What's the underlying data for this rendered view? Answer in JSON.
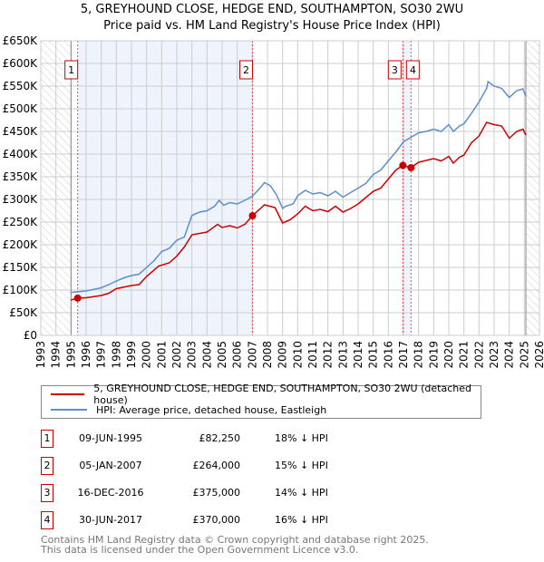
{
  "chart_data": {
    "type": "line",
    "title": "5, GREYHOUND CLOSE, HEDGE END, SOUTHAMPTON, SO30 2WU",
    "subtitle": "Price paid vs. HM Land Registry's House Price Index (HPI)",
    "xlim": [
      1993,
      2026
    ],
    "ylim": [
      0,
      650000
    ],
    "x_ticks": [
      "1993",
      "1994",
      "1995",
      "1996",
      "1997",
      "1998",
      "1999",
      "2000",
      "2001",
      "2002",
      "2003",
      "2004",
      "2005",
      "2006",
      "2007",
      "2008",
      "2009",
      "2010",
      "2011",
      "2012",
      "2013",
      "2014",
      "2015",
      "2016",
      "2017",
      "2018",
      "2019",
      "2020",
      "2021",
      "2022",
      "2023",
      "2024",
      "2025",
      "2026"
    ],
    "y_ticks": [
      {
        "v": 0,
        "l": "£0"
      },
      {
        "v": 50000,
        "l": "£50K"
      },
      {
        "v": 100000,
        "l": "£100K"
      },
      {
        "v": 150000,
        "l": "£150K"
      },
      {
        "v": 200000,
        "l": "£200K"
      },
      {
        "v": 250000,
        "l": "£250K"
      },
      {
        "v": 300000,
        "l": "£300K"
      },
      {
        "v": 350000,
        "l": "£350K"
      },
      {
        "v": 400000,
        "l": "£400K"
      },
      {
        "v": 450000,
        "l": "£450K"
      },
      {
        "v": 500000,
        "l": "£500K"
      },
      {
        "v": 550000,
        "l": "£550K"
      },
      {
        "v": 600000,
        "l": "£600K"
      },
      {
        "v": 650000,
        "l": "£650K"
      }
    ],
    "grid": true,
    "data_range": [
      1995.0,
      2025.1
    ],
    "series": [
      {
        "name": "5, GREYHOUND CLOSE, HEDGE END, SOUTHAMPTON, SO30 2WU (detached house)",
        "color": "#cc0000",
        "x": [
          1995,
          1995.44,
          1996,
          1997,
          1997.5,
          1998,
          1999,
          1999.5,
          2000,
          2000.8,
          2001.5,
          2002,
          2002.5,
          2003,
          2004,
          2004.7,
          2005,
          2005.5,
          2006,
          2006.5,
          2007.01,
          2007.8,
          2008.5,
          2009,
          2009.5,
          2010,
          2010.5,
          2011,
          2011.5,
          2012,
          2012.5,
          2013,
          2013.5,
          2014,
          2015,
          2015.5,
          2016,
          2016.5,
          2016.96,
          2017.5,
          2018,
          2019,
          2019.5,
          2020,
          2020.3,
          2020.7,
          2021,
          2021.5,
          2022,
          2022.5,
          2023,
          2023.5,
          2024,
          2024.5,
          2024.9,
          2025.1
        ],
        "y": [
          78000,
          82250,
          83000,
          88000,
          93000,
          103000,
          110000,
          112000,
          130000,
          153000,
          160000,
          175000,
          195000,
          222000,
          228000,
          245000,
          238000,
          242000,
          237000,
          245000,
          264000,
          288000,
          282000,
          248000,
          255000,
          268000,
          285000,
          275000,
          278000,
          273000,
          285000,
          272000,
          280000,
          290000,
          318000,
          325000,
          345000,
          365000,
          375000,
          370000,
          382000,
          390000,
          385000,
          395000,
          380000,
          393000,
          398000,
          425000,
          440000,
          470000,
          465000,
          462000,
          435000,
          450000,
          455000,
          442000
        ]
      },
      {
        "name": "HPI: Average price, detached house, Eastleigh",
        "color": "#5b8fd0",
        "x": [
          1995,
          1996,
          1997,
          1997.5,
          1998,
          1998.5,
          1999,
          1999.5,
          2000,
          2000.5,
          2001,
          2001.5,
          2002,
          2002.5,
          2003,
          2003.5,
          2004,
          2004.5,
          2004.8,
          2005.1,
          2005.5,
          2006,
          2006.5,
          2007,
          2007.5,
          2007.8,
          2008.2,
          2008.6,
          2009,
          2009.2,
          2009.7,
          2010,
          2010.5,
          2011,
          2011.5,
          2012,
          2012.5,
          2013,
          2013.5,
          2014,
          2014.5,
          2015,
          2015.5,
          2016,
          2016.5,
          2017,
          2017.5,
          2018,
          2018.5,
          2019,
          2019.5,
          2020,
          2020.3,
          2020.7,
          2021,
          2021.5,
          2022,
          2022.5,
          2022.6,
          2023,
          2023.5,
          2024,
          2024.5,
          2024.9,
          2025.1
        ],
        "y": [
          95000,
          98000,
          105000,
          112000,
          120000,
          127000,
          132000,
          135000,
          150000,
          165000,
          185000,
          192000,
          210000,
          217000,
          265000,
          272000,
          275000,
          285000,
          298000,
          287000,
          293000,
          290000,
          298000,
          307000,
          325000,
          337000,
          330000,
          310000,
          280000,
          285000,
          290000,
          308000,
          320000,
          312000,
          315000,
          308000,
          318000,
          305000,
          315000,
          325000,
          335000,
          355000,
          365000,
          385000,
          405000,
          427000,
          437000,
          447000,
          450000,
          455000,
          450000,
          465000,
          450000,
          462000,
          467000,
          490000,
          515000,
          545000,
          560000,
          550000,
          545000,
          525000,
          540000,
          544000,
          528000
        ]
      }
    ],
    "sales": [
      {
        "n": "1",
        "x": 1995.44,
        "price": 82250
      },
      {
        "n": "2",
        "x": 2007.01,
        "price": 264000
      },
      {
        "n": "3",
        "x": 2016.96,
        "price": 375000
      },
      {
        "n": "4",
        "x": 2017.5,
        "price": 370000
      }
    ],
    "shaded": [
      [
        1995.44,
        2007.01
      ],
      [
        2016.96,
        2017.5
      ]
    ],
    "legend_position": "below"
  },
  "legend": [
    {
      "label": "5, GREYHOUND CLOSE, HEDGE END, SOUTHAMPTON, SO30 2WU (detached house)",
      "color": "#cc0000"
    },
    {
      "label": "HPI: Average price, detached house, Eastleigh",
      "color": "#5b8fd0"
    }
  ],
  "table": [
    {
      "n": "1",
      "date": "09-JUN-1995",
      "price": "£82,250",
      "hpi": "18% ↓ HPI"
    },
    {
      "n": "2",
      "date": "05-JAN-2007",
      "price": "£264,000",
      "hpi": "15% ↓ HPI"
    },
    {
      "n": "3",
      "date": "16-DEC-2016",
      "price": "£375,000",
      "hpi": "14% ↓ HPI"
    },
    {
      "n": "4",
      "date": "30-JUN-2017",
      "price": "£370,000",
      "hpi": "16% ↓ HPI"
    }
  ],
  "footer": [
    "Contains HM Land Registry data © Crown copyright and database right 2025.",
    "This data is licensed under the Open Government Licence v3.0."
  ]
}
